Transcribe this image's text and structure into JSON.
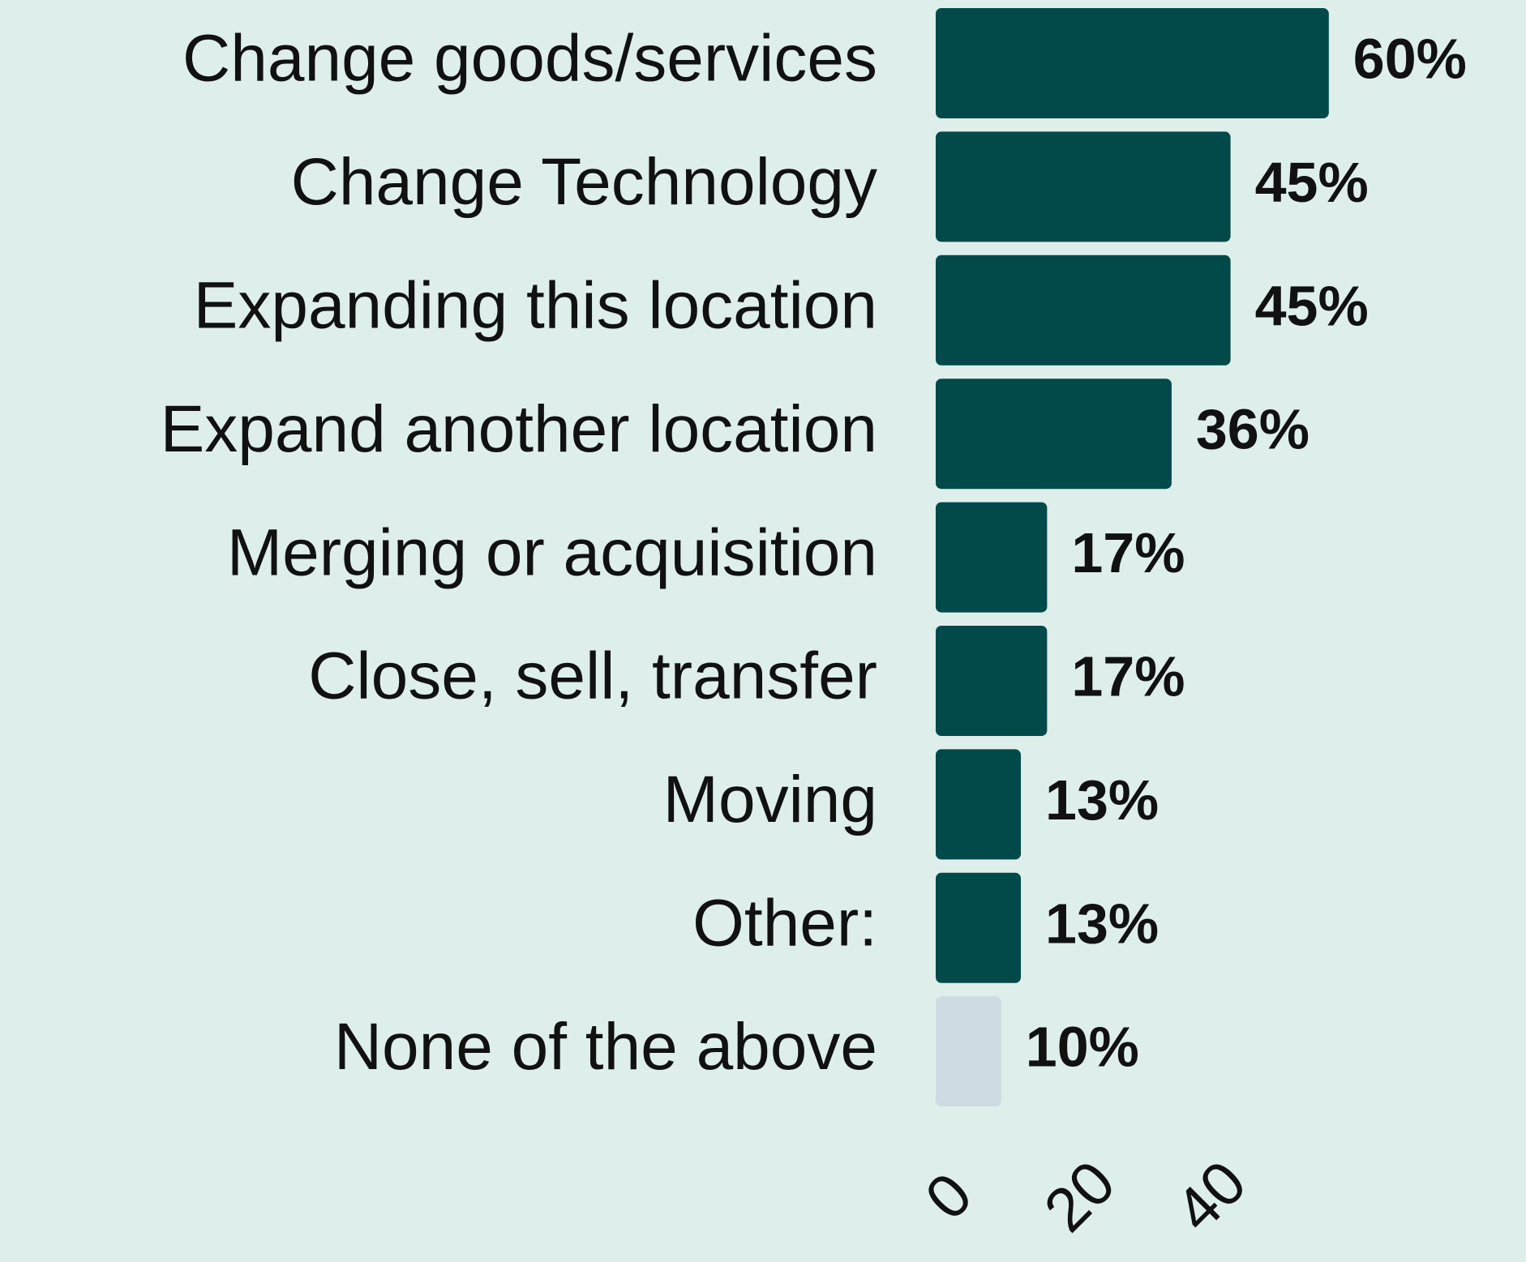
{
  "chart_data": {
    "type": "hbar",
    "categories": [
      "Change goods/services",
      "Change Technology",
      "Expanding this location",
      "Expand another location",
      "Merging or acquisition",
      "Close, sell, transfer",
      "Moving",
      "Other:",
      "None of the above"
    ],
    "values": [
      60,
      45,
      45,
      36,
      17,
      17,
      13,
      13,
      10
    ],
    "value_labels": [
      "60%",
      "45%",
      "45%",
      "36%",
      "17%",
      "17%",
      "13%",
      "13%",
      "10%"
    ],
    "colors": [
      "#02494a",
      "#02494a",
      "#02494a",
      "#02494a",
      "#02494a",
      "#02494a",
      "#02494a",
      "#02494a",
      "#cfdbe3"
    ],
    "xlim": [
      0,
      60
    ],
    "xticks": [
      0,
      20,
      40
    ],
    "grid": false
  }
}
